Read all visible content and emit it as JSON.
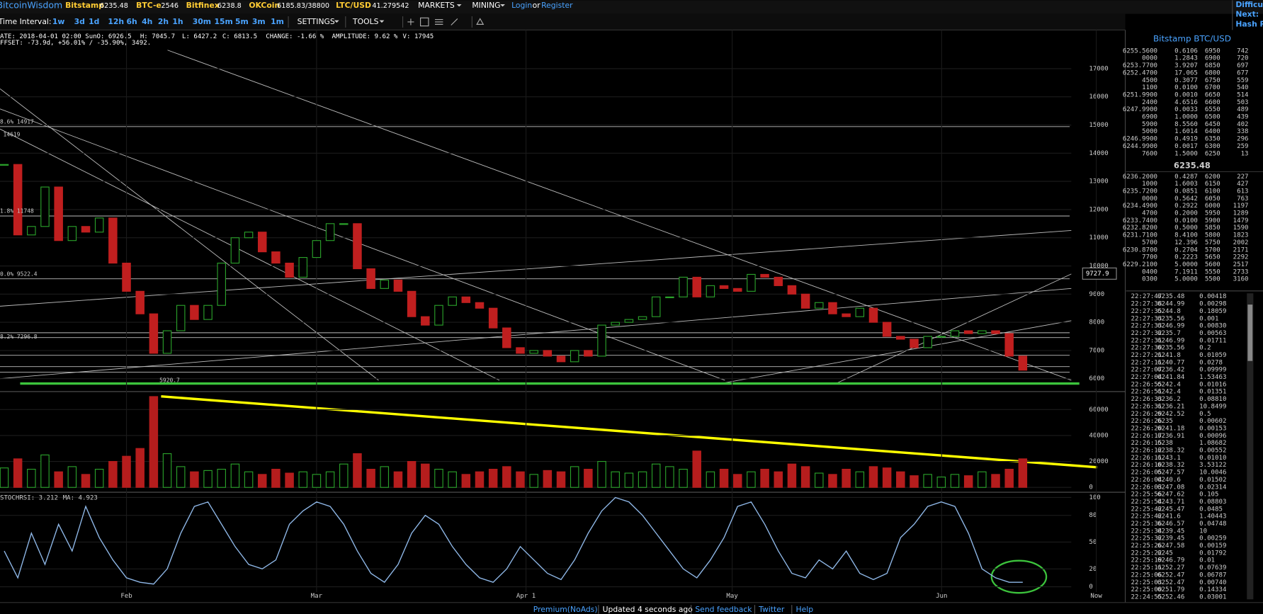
{
  "header": {
    "logo": "BitcoinWisdom",
    "tickers": [
      {
        "name": "Bitstamp",
        "price": 6235.48
      },
      {
        "name": "BTC-e",
        "price": 2546
      },
      {
        "name": "Bitfinex",
        "price": 6238.8
      },
      {
        "name": "OKCoin",
        "price": "6185.83/38800"
      },
      {
        "name": "LTC/USD",
        "price": 41.279542
      }
    ],
    "nav": [
      "MARKETS",
      "MINING"
    ],
    "login": "Login",
    "or": "or",
    "register": "Register",
    "side": [
      "Difficult",
      "Next:",
      "Hash Ra"
    ]
  },
  "toolbar": {
    "label": "Time Interval:",
    "intervals": [
      "1w",
      "3d",
      "1d",
      "12h",
      "6h",
      "4h",
      "2h",
      "1h",
      "30m",
      "15m",
      "5m",
      "3m",
      "1m"
    ],
    "settings": "SETTINGS",
    "tools": "TOOLS"
  },
  "info": {
    "line1": [
      "ATE: 2018-04-01 02:00 Sun",
      "O: 6926.5",
      "H: 7045.7",
      "L: 6427.2",
      "C: 6813.5",
      "CHANGE: -1.66 %",
      "AMPLITUDE: 9.62 %",
      "V: 17945"
    ],
    "line2": "FFSET: -73.9d, +56.01% / -35.90%, 3492."
  },
  "chart": {
    "type": "candlestick",
    "closes": [
      13600,
      11100,
      11400,
      12800,
      10900,
      11400,
      11200,
      11700,
      10100,
      9100,
      8300,
      6900,
      7700,
      8600,
      8100,
      8600,
      10100,
      11000,
      11200,
      10500,
      10100,
      9600,
      10300,
      10900,
      11500,
      11500,
      9900,
      9200,
      9500,
      9100,
      8200,
      7900,
      8600,
      8900,
      8700,
      8500,
      7800,
      7100,
      6900,
      7000,
      6800,
      6600,
      7000,
      6800,
      7900,
      8000,
      8100,
      8200,
      8900,
      8900,
      9600,
      8900,
      9300,
      9200,
      9100,
      9700,
      9600,
      9300,
      9000,
      8500,
      8700,
      8300,
      8200,
      8500,
      8000,
      7500,
      7400,
      7100,
      7500,
      7500,
      7700,
      7600,
      7700,
      7600,
      6800,
      6300
    ],
    "volumes": [
      15000,
      22000,
      14000,
      25000,
      12000,
      16000,
      10000,
      14000,
      20000,
      24000,
      30000,
      70000,
      26000,
      16000,
      12000,
      13000,
      14000,
      18000,
      12000,
      10000,
      14000,
      11000,
      12000,
      10000,
      12000,
      18000,
      26000,
      14000,
      16000,
      12000,
      20000,
      18000,
      14000,
      12000,
      10000,
      12000,
      14000,
      16000,
      12000,
      10000,
      13000,
      12000,
      16000,
      14000,
      20000,
      12000,
      11000,
      12000,
      18000,
      16000,
      14000,
      28000,
      12000,
      14000,
      10000,
      12000,
      14000,
      12000,
      18000,
      16000,
      11000,
      10000,
      14000,
      12000,
      16000,
      15000,
      12000,
      9000,
      10000,
      8000,
      10000,
      9000,
      12000,
      10000,
      14000,
      22000
    ],
    "rsi": [
      40,
      10,
      60,
      25,
      70,
      40,
      90,
      55,
      30,
      10,
      5,
      3,
      20,
      60,
      90,
      95,
      70,
      45,
      25,
      20,
      30,
      70,
      85,
      95,
      90,
      70,
      40,
      15,
      5,
      25,
      60,
      80,
      70,
      45,
      25,
      10,
      5,
      20,
      45,
      30,
      15,
      8,
      30,
      60,
      85,
      100,
      95,
      80,
      60,
      40,
      20,
      10,
      30,
      55,
      90,
      95,
      70,
      40,
      15,
      10,
      30,
      20,
      40,
      15,
      8,
      15,
      55,
      70,
      90,
      95,
      90,
      60,
      20,
      10,
      5,
      5
    ],
    "ylim": [
      5700,
      18300
    ],
    "yticks": [
      6000,
      7000,
      8000,
      9000,
      10000,
      11000,
      12000,
      13000,
      14000,
      15000,
      16000,
      17000
    ],
    "volume_ylim": [
      0,
      72000
    ],
    "volume_yticks": [
      0,
      20000,
      40000,
      60000
    ],
    "rsi_ylim": [
      -15,
      105
    ],
    "rsi_yticks": [
      0,
      20,
      50,
      80,
      100
    ],
    "x_labels": [
      "Feb",
      "Mar",
      "Apr 1",
      "May",
      "Jun",
      "Now"
    ],
    "annotations": [
      "8.6% 14917",
      "14619",
      "1.8% 11748",
      "0.0% 9522.4",
      "8.2% 7296.8",
      "5920.7"
    ],
    "price_marker": 9727.9,
    "rsi_label": "STOCHRSI: 3.212",
    "ma_label": "MA: 4.923"
  },
  "orderbook": {
    "title": "Bitstamp BTC/USD",
    "asks": [
      [
        "6255.5600",
        "0.6106",
        "6950",
        "742"
      ],
      [
        "0000",
        "1.2843",
        "6900",
        "720"
      ],
      [
        "6253.7700",
        "3.9207",
        "6850",
        "697"
      ],
      [
        "6252.4700",
        "17.065",
        "6800",
        "677"
      ],
      [
        "4500",
        "0.3077",
        "6750",
        "559"
      ],
      [
        "1100",
        "0.0100",
        "6700",
        "540"
      ],
      [
        "6251.9900",
        "0.0010",
        "6650",
        "514"
      ],
      [
        "2400",
        "4.6516",
        "6600",
        "503"
      ],
      [
        "6247.9900",
        "0.0033",
        "6550",
        "489"
      ],
      [
        "6900",
        "1.0000",
        "6500",
        "439"
      ],
      [
        "5900",
        "8.5560",
        "6450",
        "402"
      ],
      [
        "5000",
        "1.6014",
        "6400",
        "338"
      ],
      [
        "6246.9900",
        "0.4919",
        "6350",
        "296"
      ],
      [
        "6244.9900",
        "0.0017",
        "6300",
        "259"
      ],
      [
        "7600",
        "1.5000",
        "6250",
        "13"
      ]
    ],
    "mid": 6235.48,
    "bids": [
      [
        "6236.2000",
        "0.4287",
        "6200",
        "227"
      ],
      [
        "1000",
        "1.6003",
        "6150",
        "427"
      ],
      [
        "6235.7200",
        "0.0851",
        "6100",
        "613"
      ],
      [
        "0000",
        "0.5642",
        "6050",
        "763"
      ],
      [
        "6234.4900",
        "0.2922",
        "6000",
        "1197"
      ],
      [
        "4700",
        "0.2000",
        "5950",
        "1289"
      ],
      [
        "6233.7400",
        "0.0100",
        "5900",
        "1479"
      ],
      [
        "6232.8200",
        "0.5000",
        "5850",
        "1590"
      ],
      [
        "6231.7100",
        "8.4100",
        "5800",
        "1823"
      ],
      [
        "5700",
        "12.396",
        "5750",
        "2002"
      ],
      [
        "6230.8700",
        "0.2704",
        "5700",
        "2171"
      ],
      [
        "7700",
        "0.2223",
        "5650",
        "2292"
      ],
      [
        "6229.2100",
        "5.0000",
        "5600",
        "2517"
      ],
      [
        "0400",
        "7.1911",
        "5550",
        "2733"
      ],
      [
        "0300",
        "5.0000",
        "5500",
        "3160"
      ]
    ]
  },
  "trades": [
    [
      "22:27:47",
      "6235.48",
      "0.00418",
      "#e03030"
    ],
    [
      "22:27:38",
      "6244.99",
      "0.00298",
      "#5cd65c"
    ],
    [
      "22:27:35",
      "6244.8",
      "0.18059",
      "#5cd65c"
    ],
    [
      "22:27:33",
      "6235.56",
      "0.001",
      "#e03030"
    ],
    [
      "22:27:33",
      "6246.99",
      "0.00830",
      "#5cd65c"
    ],
    [
      "22:27:32",
      "6235.7",
      "0.00563",
      "#e03030"
    ],
    [
      "22:27:31",
      "6246.99",
      "0.01711",
      "#5cd65c"
    ],
    [
      "22:27:30",
      "6235.56",
      "0.2",
      "#e03030"
    ],
    [
      "22:27:21",
      "6241.8",
      "0.01059",
      "#5cd65c"
    ],
    [
      "22:27:11",
      "6240.77",
      "0.0278",
      "#5cd65c"
    ],
    [
      "22:27:07",
      "6236.42",
      "0.09999",
      "#e03030"
    ],
    [
      "22:27:04",
      "6241.84",
      "1.53463",
      "#5cd65c"
    ],
    [
      "22:26:55",
      "6242.4",
      "0.01016",
      "#5cd65c"
    ],
    [
      "22:26:51",
      "6242.4",
      "0.01351",
      "#5cd65c"
    ],
    [
      "22:26:33",
      "6236.2",
      "0.08810",
      "#e03030"
    ],
    [
      "22:26:31",
      "6236.21",
      "10.8499",
      "#e03030"
    ],
    [
      "22:26:29",
      "6242.52",
      "0.5",
      "#5cd65c"
    ],
    [
      "22:26:26",
      "6235",
      "0.00602",
      "#e03030"
    ],
    [
      "22:26:20",
      "6241.18",
      "0.00153",
      "#e03030"
    ],
    [
      "22:26:17",
      "6236.91",
      "0.00096",
      "#e03030"
    ],
    [
      "22:26:15",
      "6238",
      "1.08682",
      "#e03030"
    ],
    [
      "22:26:12",
      "6238.32",
      "0.00552",
      "#e03030"
    ],
    [
      "22:26:11",
      "6243.1",
      "0.01010",
      "#5cd65c"
    ],
    [
      "22:26:10",
      "6238.32",
      "3.53122",
      "#e03030"
    ],
    [
      "22:26:05",
      "6247.57",
      "10.0046",
      "#5cd65c"
    ],
    [
      "22:26:04",
      "6240.6",
      "0.01502",
      "#e03030"
    ],
    [
      "22:26:03",
      "6247.08",
      "0.02314",
      "#5cd65c"
    ],
    [
      "22:25:56",
      "6247.62",
      "0.105",
      "#5cd65c"
    ],
    [
      "22:25:54",
      "6243.71",
      "0.08803",
      "#5cd65c"
    ],
    [
      "22:25:42",
      "6245.47",
      "0.0485",
      "#5cd65c"
    ],
    [
      "22:25:42",
      "6241.6",
      "1.40443",
      "#e03030"
    ],
    [
      "22:25:36",
      "6246.57",
      "0.04748",
      "#5cd65c"
    ],
    [
      "22:25:34",
      "6239.45",
      "10",
      "#e03030"
    ],
    [
      "22:25:32",
      "6239.45",
      "0.00259",
      "#e03030"
    ],
    [
      "22:25:26",
      "6247.58",
      "0.00159",
      "#5cd65c"
    ],
    [
      "22:25:22",
      "6245",
      "0.01792",
      "#e03030"
    ],
    [
      "22:25:19",
      "6246.79",
      "0.01",
      "#e03030"
    ],
    [
      "22:25:11",
      "6252.27",
      "0.07639",
      "#5cd65c"
    ],
    [
      "22:25:06",
      "6252.47",
      "0.06787",
      "#5cd65c"
    ],
    [
      "22:25:03",
      "6252.47",
      "0.00740",
      "#5cd65c"
    ],
    [
      "22:25:00",
      "6251.79",
      "0.14334",
      "#5cd65c"
    ],
    [
      "22:24:55",
      "6252.46",
      "0.03001",
      "#e03030"
    ]
  ],
  "footer": [
    "Premium(NoAds)",
    "Updated 4 seconds ago",
    "Send feedback",
    "Twitter",
    "Help"
  ]
}
